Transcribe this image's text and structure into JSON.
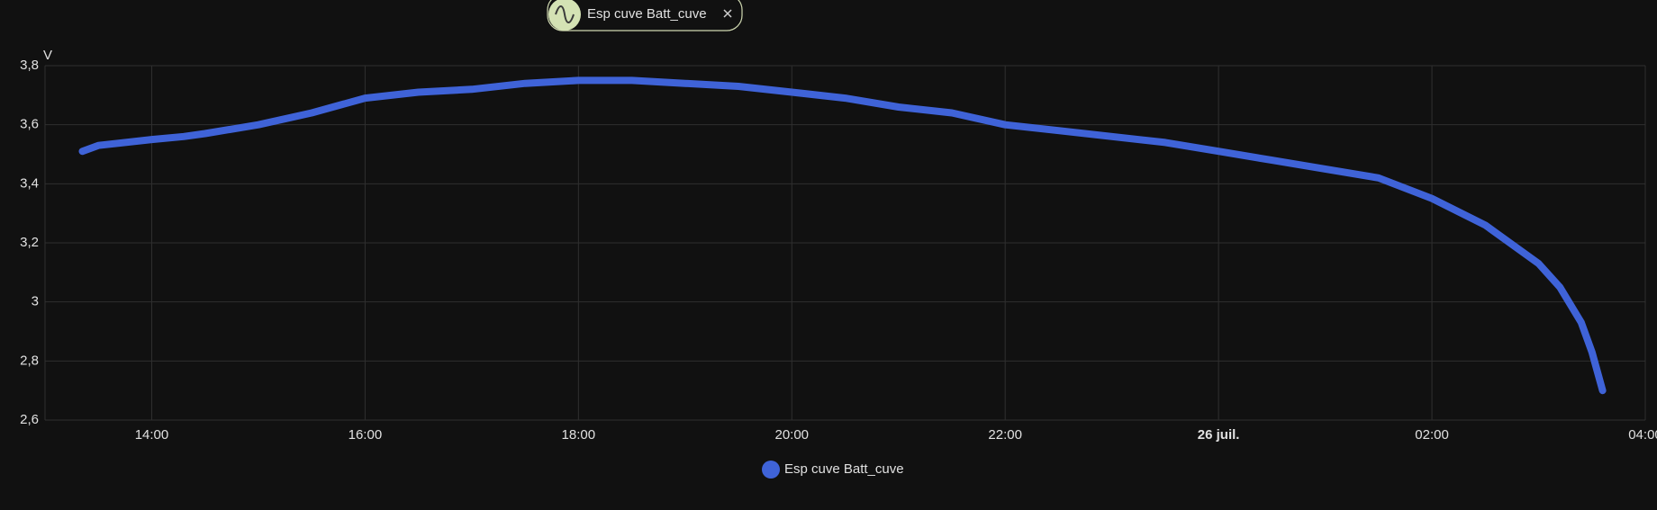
{
  "filter_chip": {
    "label": "Esp cuve Batt_cuve"
  },
  "chart_data": {
    "type": "line",
    "y_label": "V",
    "x": [
      13.35,
      13.5,
      14.0,
      14.3,
      14.5,
      15.0,
      15.5,
      16.0,
      16.5,
      17.0,
      17.5,
      18.0,
      18.5,
      19.0,
      19.5,
      20.0,
      20.5,
      21.0,
      21.5,
      22.0,
      22.5,
      23.0,
      23.5,
      24.0,
      24.5,
      25.0,
      25.5,
      26.0,
      26.5,
      27.0,
      27.2,
      27.4,
      27.5,
      27.6
    ],
    "series": [
      {
        "name": "Esp cuve Batt_cuve",
        "color": "#3f63d8",
        "values": [
          3.51,
          3.53,
          3.55,
          3.56,
          3.57,
          3.6,
          3.64,
          3.69,
          3.71,
          3.72,
          3.74,
          3.75,
          3.75,
          3.74,
          3.73,
          3.71,
          3.69,
          3.66,
          3.64,
          3.6,
          3.58,
          3.56,
          3.54,
          3.51,
          3.48,
          3.45,
          3.42,
          3.35,
          3.26,
          3.13,
          3.05,
          2.93,
          2.83,
          2.7
        ]
      }
    ],
    "xlim": [
      13.0,
      28.0
    ],
    "xticks": [
      {
        "value": 14,
        "label": "14:00"
      },
      {
        "value": 16,
        "label": "16:00"
      },
      {
        "value": 18,
        "label": "18:00"
      },
      {
        "value": 20,
        "label": "20:00"
      },
      {
        "value": 22,
        "label": "22:00"
      },
      {
        "value": 24,
        "label": "26 juil."
      },
      {
        "value": 26,
        "label": "02:00"
      },
      {
        "value": 28,
        "label": "04:00"
      }
    ],
    "ylim": [
      2.6,
      3.8
    ],
    "yticks": [
      {
        "value": 2.6,
        "label": "2,6"
      },
      {
        "value": 2.8,
        "label": "2,8"
      },
      3,
      {
        "value": 3.2,
        "label": "3,2"
      },
      {
        "value": 3.4,
        "label": "3,4"
      },
      {
        "value": 3.6,
        "label": "3,6"
      },
      {
        "value": 3.8,
        "label": "3,8"
      }
    ],
    "grid": true,
    "legend": "bottom"
  }
}
